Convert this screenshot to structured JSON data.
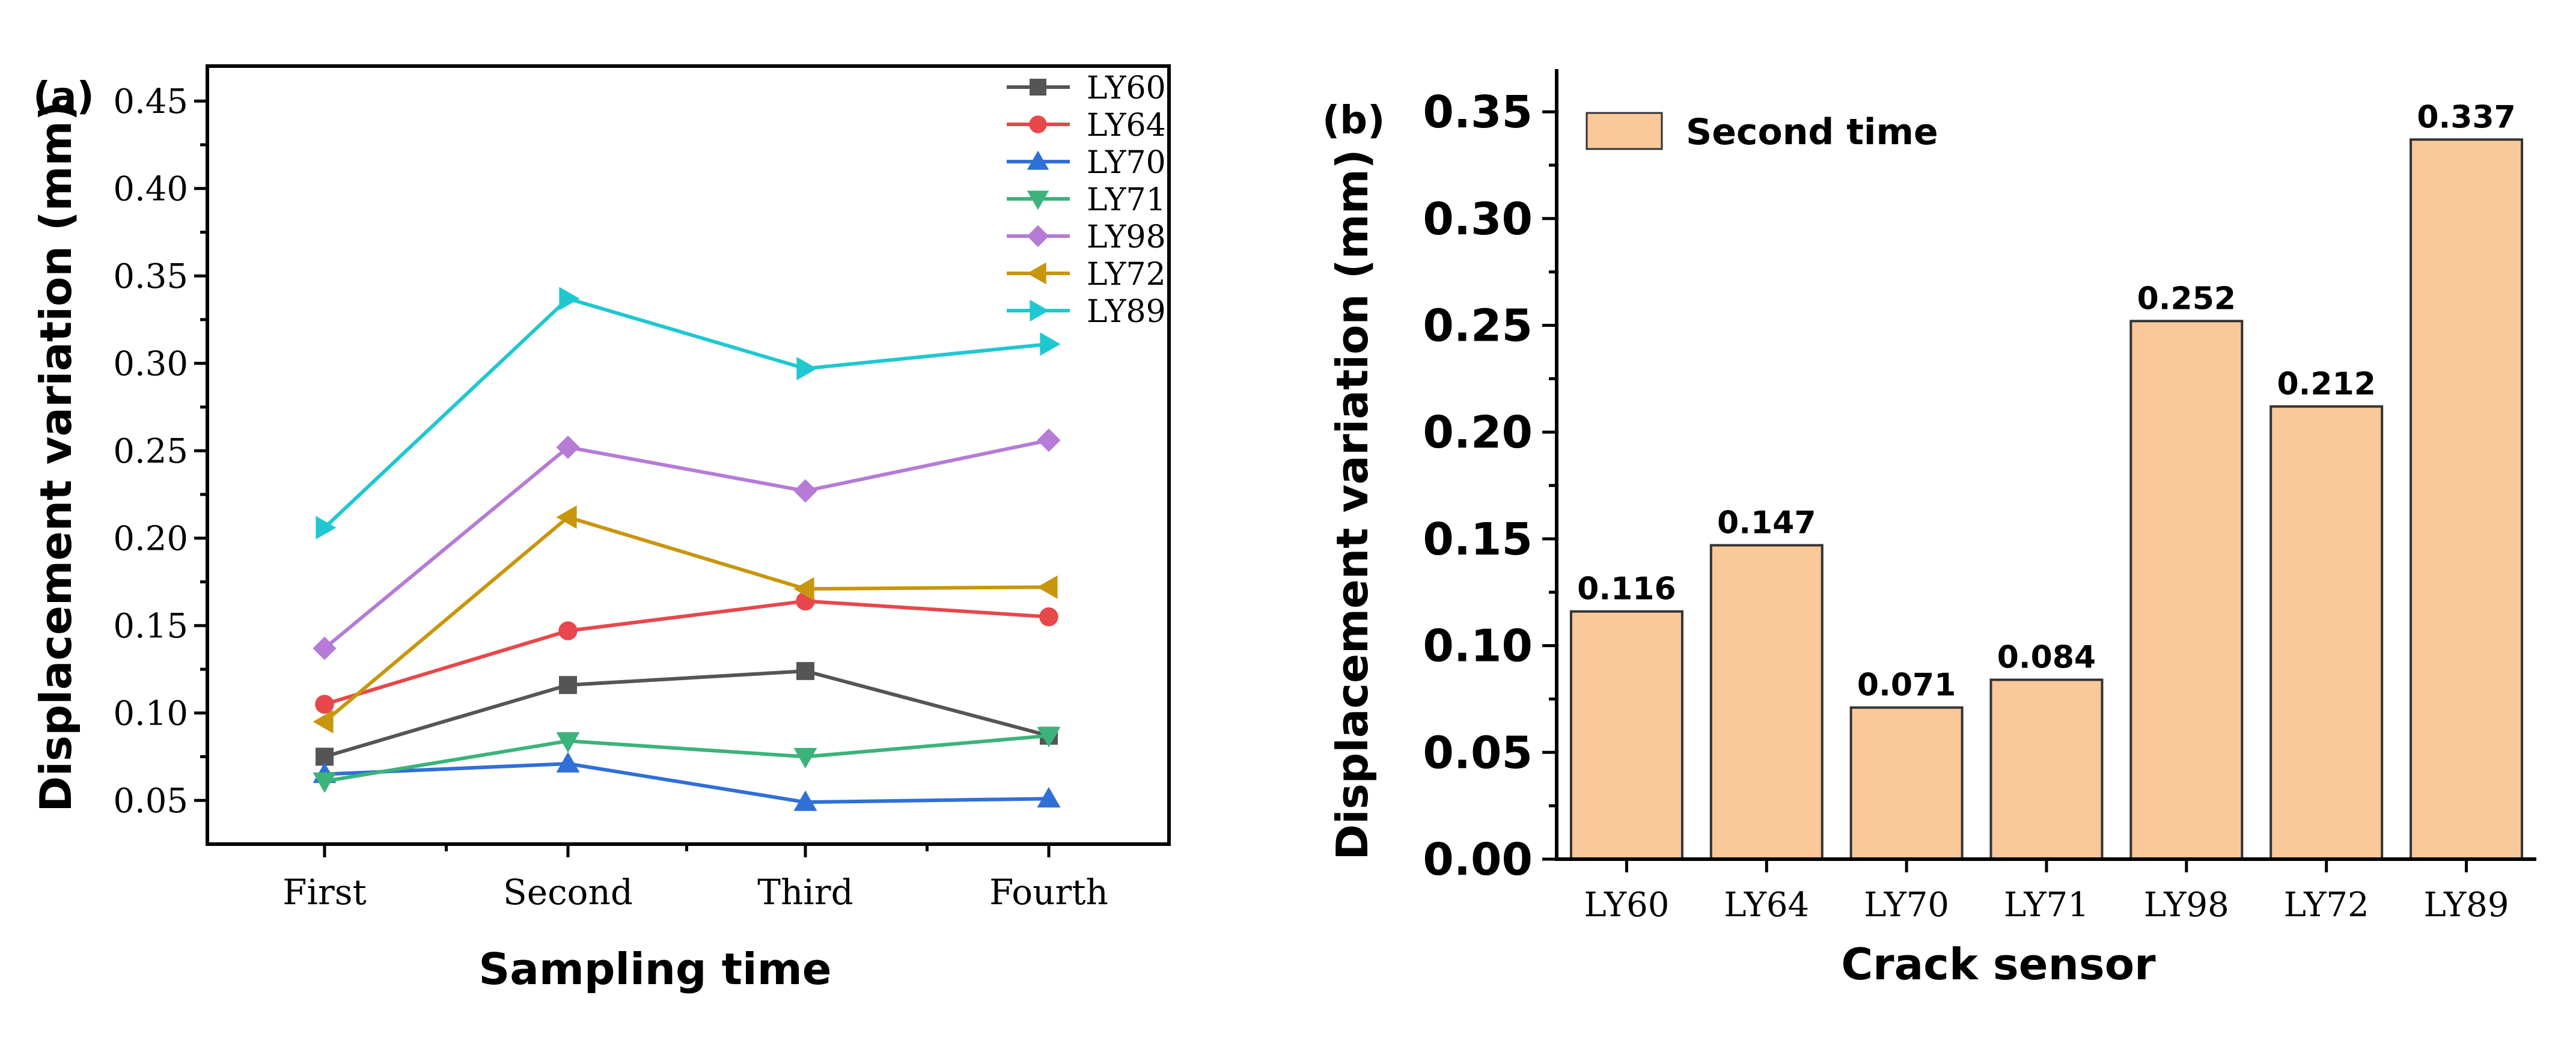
{
  "chart_data": [
    {
      "type": "line",
      "panel_label": "(a)",
      "xlabel": "Sampling time",
      "ylabel": "Displacement variation (mm)",
      "categories": [
        "First",
        "Second",
        "Third",
        "Fourth"
      ],
      "ylim": [
        0.025,
        0.47
      ],
      "yticks": [
        0.05,
        0.1,
        0.15,
        0.2,
        0.25,
        0.3,
        0.35,
        0.4,
        0.45
      ],
      "ytick_labels": [
        "0.05",
        "0.10",
        "0.15",
        "0.20",
        "0.25",
        "0.30",
        "0.35",
        "0.40",
        "0.45"
      ],
      "legend_position": "top-right",
      "series": [
        {
          "name": "LY60",
          "color": "#555555",
          "marker": "square",
          "values": [
            0.075,
            0.116,
            0.124,
            0.087
          ]
        },
        {
          "name": "LY64",
          "color": "#e8474c",
          "marker": "circle",
          "values": [
            0.105,
            0.147,
            0.164,
            0.155
          ]
        },
        {
          "name": "LY70",
          "color": "#2f6fd8",
          "marker": "triangle-up",
          "values": [
            0.065,
            0.071,
            0.049,
            0.051
          ]
        },
        {
          "name": "LY71",
          "color": "#3bb37a",
          "marker": "triangle-down",
          "values": [
            0.061,
            0.084,
            0.075,
            0.087
          ]
        },
        {
          "name": "LY98",
          "color": "#b57bd6",
          "marker": "diamond",
          "values": [
            0.137,
            0.252,
            0.227,
            0.256
          ]
        },
        {
          "name": "LY72",
          "color": "#c8960c",
          "marker": "triangle-left",
          "values": [
            0.095,
            0.212,
            0.171,
            0.172
          ]
        },
        {
          "name": "LY89",
          "color": "#1fc8d0",
          "marker": "triangle-right",
          "values": [
            0.206,
            0.337,
            0.297,
            0.311
          ]
        }
      ]
    },
    {
      "type": "bar",
      "panel_label": "(b)",
      "xlabel": "Crack sensor",
      "ylabel": "Displacement variation (mm)",
      "categories": [
        "LY60",
        "LY64",
        "LY70",
        "LY71",
        "LY98",
        "LY72",
        "LY89"
      ],
      "values": [
        0.116,
        0.147,
        0.071,
        0.084,
        0.252,
        0.212,
        0.337
      ],
      "value_labels": [
        "0.116",
        "0.147",
        "0.071",
        "0.084",
        "0.252",
        "0.212",
        "0.337"
      ],
      "ylim": [
        0,
        0.37
      ],
      "yticks": [
        0.0,
        0.05,
        0.1,
        0.15,
        0.2,
        0.25,
        0.3,
        0.35
      ],
      "ytick_labels": [
        "0.00",
        "0.05",
        "0.10",
        "0.15",
        "0.20",
        "0.25",
        "0.30",
        "0.35"
      ],
      "legend": "Second time",
      "legend_position": "top-left",
      "bar_color": "#fac899",
      "bar_edge_color": "#333333"
    }
  ]
}
